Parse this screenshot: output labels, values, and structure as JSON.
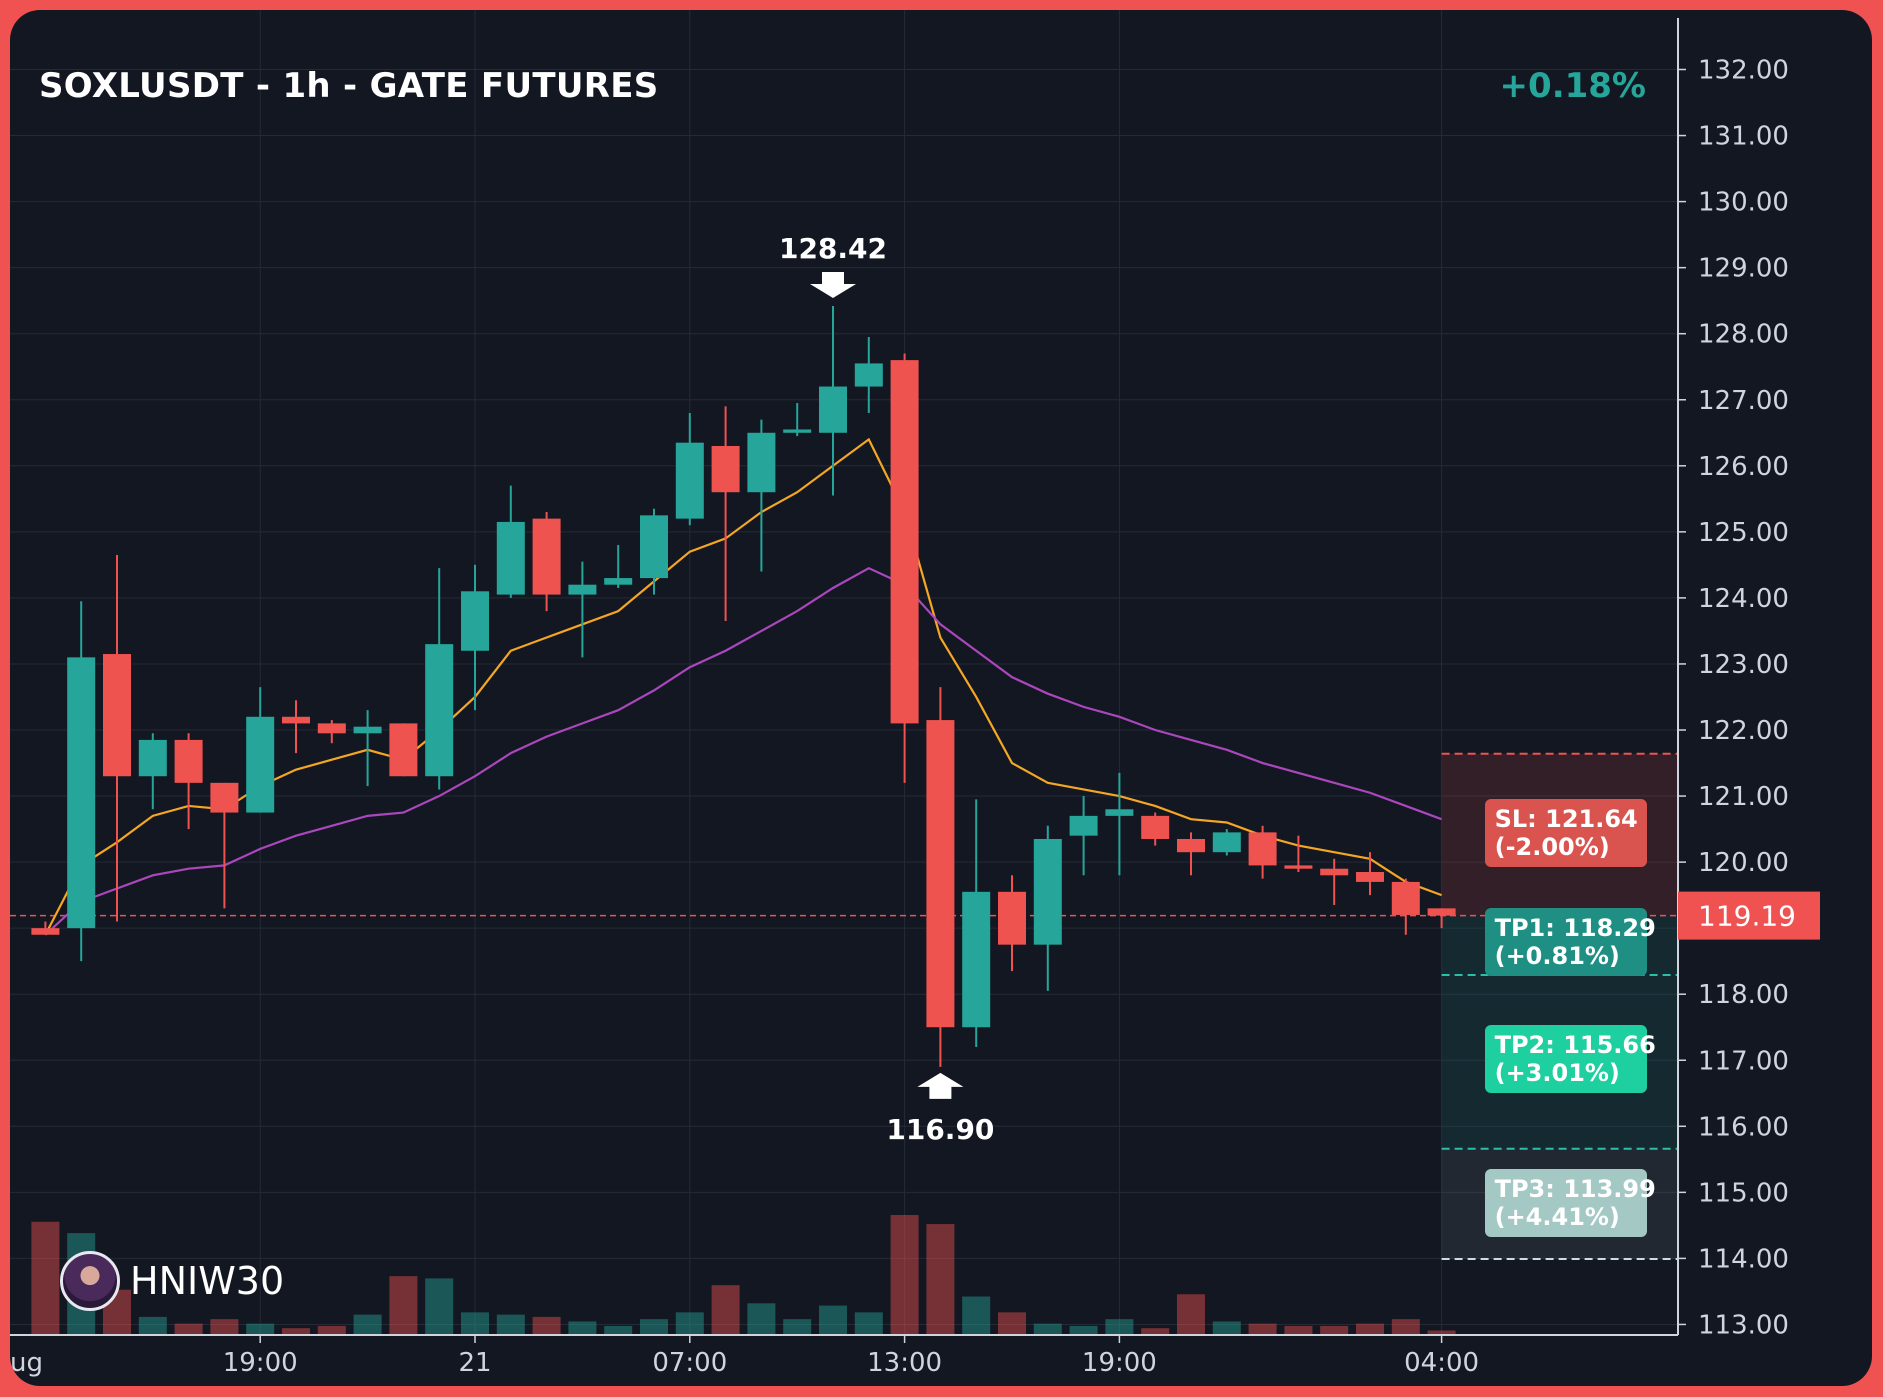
{
  "header": {
    "title": "SOXLUSDT - 1h - GATE FUTURES",
    "change": "+0.18%"
  },
  "watermark": {
    "name": "HNIW30"
  },
  "colors": {
    "up": "#26a69a",
    "down": "#ef5350",
    "ema_fast": "#f5a623",
    "ema_slow": "#ab47bc",
    "sl": "#d9534f",
    "tp1": "#1f8f84",
    "tp2": "#1ecf9f",
    "tp3": "#a4c8c4",
    "current_price_tag": "#f05252"
  },
  "chart_data": {
    "type": "candlestick",
    "title": "SOXLUSDT - 1h - GATE FUTURES",
    "y_axis": {
      "ylim": [
        112.8,
        132.4
      ],
      "ticks": [
        "113.00",
        "114.00",
        "115.00",
        "116.00",
        "117.00",
        "118.00",
        "119.00",
        "120.00",
        "121.00",
        "122.00",
        "123.00",
        "124.00",
        "125.00",
        "126.00",
        "127.00",
        "128.00",
        "129.00",
        "130.00",
        "131.00",
        "132.00"
      ]
    },
    "x_axis": {
      "ticks": [
        {
          "label": "ug",
          "index": 0
        },
        {
          "label": "19:00",
          "index": 6
        },
        {
          "label": "21",
          "index": 12
        },
        {
          "label": "07:00",
          "index": 18
        },
        {
          "label": "13:00",
          "index": 24
        },
        {
          "label": "19:00",
          "index": 30
        },
        {
          "label": "04:00",
          "index": 39
        }
      ]
    },
    "grid": true,
    "candles": [
      {
        "o": 119.0,
        "h": 119.1,
        "l": 118.9,
        "c": 118.9,
        "v": 0.5
      },
      {
        "o": 119.0,
        "h": 123.95,
        "l": 118.5,
        "c": 123.1,
        "v": 0.45
      },
      {
        "o": 123.15,
        "h": 124.65,
        "l": 119.1,
        "c": 121.3,
        "v": 0.2
      },
      {
        "o": 121.3,
        "h": 121.95,
        "l": 120.8,
        "c": 121.85,
        "v": 0.08
      },
      {
        "o": 121.85,
        "h": 121.95,
        "l": 120.5,
        "c": 121.2,
        "v": 0.05
      },
      {
        "o": 121.2,
        "h": 121.2,
        "l": 119.3,
        "c": 120.75,
        "v": 0.07
      },
      {
        "o": 120.75,
        "h": 122.65,
        "l": 120.75,
        "c": 122.2,
        "v": 0.05
      },
      {
        "o": 122.2,
        "h": 122.45,
        "l": 121.65,
        "c": 122.1,
        "v": 0.03
      },
      {
        "o": 122.1,
        "h": 122.15,
        "l": 121.8,
        "c": 121.95,
        "v": 0.04
      },
      {
        "o": 121.95,
        "h": 122.3,
        "l": 121.15,
        "c": 122.05,
        "v": 0.09
      },
      {
        "o": 122.1,
        "h": 122.1,
        "l": 121.3,
        "c": 121.3,
        "v": 0.26
      },
      {
        "o": 121.3,
        "h": 124.45,
        "l": 121.1,
        "c": 123.3,
        "v": 0.25
      },
      {
        "o": 123.2,
        "h": 124.5,
        "l": 122.3,
        "c": 124.1,
        "v": 0.1
      },
      {
        "o": 124.05,
        "h": 125.7,
        "l": 124.0,
        "c": 125.15,
        "v": 0.09
      },
      {
        "o": 125.2,
        "h": 125.3,
        "l": 123.8,
        "c": 124.05,
        "v": 0.08
      },
      {
        "o": 124.05,
        "h": 124.55,
        "l": 123.1,
        "c": 124.2,
        "v": 0.06
      },
      {
        "o": 124.2,
        "h": 124.8,
        "l": 124.15,
        "c": 124.3,
        "v": 0.04
      },
      {
        "o": 124.3,
        "h": 125.35,
        "l": 124.05,
        "c": 125.25,
        "v": 0.07
      },
      {
        "o": 125.2,
        "h": 126.8,
        "l": 125.1,
        "c": 126.35,
        "v": 0.1
      },
      {
        "o": 126.3,
        "h": 126.9,
        "l": 123.65,
        "c": 125.6,
        "v": 0.22
      },
      {
        "o": 125.6,
        "h": 126.7,
        "l": 124.4,
        "c": 126.5,
        "v": 0.14
      },
      {
        "o": 126.5,
        "h": 126.95,
        "l": 126.45,
        "c": 126.55,
        "v": 0.07
      },
      {
        "o": 126.5,
        "h": 128.42,
        "l": 125.55,
        "c": 127.2,
        "v": 0.13
      },
      {
        "o": 127.2,
        "h": 127.95,
        "l": 126.8,
        "c": 127.55,
        "v": 0.1
      },
      {
        "o": 127.6,
        "h": 127.7,
        "l": 121.2,
        "c": 122.1,
        "v": 0.53
      },
      {
        "o": 122.15,
        "h": 122.65,
        "l": 116.9,
        "c": 117.5,
        "v": 0.49
      },
      {
        "o": 117.5,
        "h": 120.95,
        "l": 117.2,
        "c": 119.55,
        "v": 0.17
      },
      {
        "o": 119.55,
        "h": 119.8,
        "l": 118.35,
        "c": 118.75,
        "v": 0.1
      },
      {
        "o": 118.75,
        "h": 120.55,
        "l": 118.05,
        "c": 120.35,
        "v": 0.05
      },
      {
        "o": 120.4,
        "h": 121.0,
        "l": 119.8,
        "c": 120.7,
        "v": 0.04
      },
      {
        "o": 120.7,
        "h": 121.35,
        "l": 119.8,
        "c": 120.8,
        "v": 0.07
      },
      {
        "o": 120.7,
        "h": 120.75,
        "l": 120.25,
        "c": 120.35,
        "v": 0.03
      },
      {
        "o": 120.35,
        "h": 120.45,
        "l": 119.8,
        "c": 120.15,
        "v": 0.18
      },
      {
        "o": 120.15,
        "h": 120.5,
        "l": 120.1,
        "c": 120.45,
        "v": 0.06
      },
      {
        "o": 120.45,
        "h": 120.55,
        "l": 119.75,
        "c": 119.95,
        "v": 0.05
      },
      {
        "o": 119.95,
        "h": 120.4,
        "l": 119.85,
        "c": 119.9,
        "v": 0.04
      },
      {
        "o": 119.9,
        "h": 120.05,
        "l": 119.35,
        "c": 119.8,
        "v": 0.04
      },
      {
        "o": 119.85,
        "h": 120.15,
        "l": 119.5,
        "c": 119.7,
        "v": 0.05
      },
      {
        "o": 119.7,
        "h": 119.75,
        "l": 118.9,
        "c": 119.2,
        "v": 0.07
      },
      {
        "o": 119.3,
        "h": 119.3,
        "l": 119.0,
        "c": 119.19,
        "v": 0.02
      }
    ],
    "series": [
      {
        "values": [
          118.9,
          119.95,
          120.3,
          120.7,
          120.85,
          120.8,
          121.15,
          121.4,
          121.55,
          121.7,
          121.55,
          122.0,
          122.5,
          123.2,
          123.4,
          123.6,
          123.8,
          124.25,
          124.7,
          124.9,
          125.3,
          125.6,
          126.0,
          126.4,
          125.3,
          123.4,
          122.5,
          121.5,
          121.2,
          121.1,
          121.0,
          120.85,
          120.65,
          120.6,
          120.4,
          120.25,
          120.15,
          120.05,
          119.7,
          119.5
        ]
      },
      {
        "values": [
          118.9,
          119.4,
          119.6,
          119.8,
          119.9,
          119.95,
          120.2,
          120.4,
          120.55,
          120.7,
          120.75,
          121.0,
          121.3,
          121.65,
          121.9,
          122.1,
          122.3,
          122.6,
          122.95,
          123.2,
          123.5,
          123.8,
          124.15,
          124.45,
          124.2,
          123.6,
          123.2,
          122.8,
          122.55,
          122.35,
          122.2,
          122.0,
          121.85,
          121.7,
          121.5,
          121.35,
          121.2,
          121.05,
          120.85,
          120.65
        ]
      }
    ],
    "annotations": [
      {
        "text": "128.42",
        "index": 22,
        "price": 128.42,
        "type": "high-marker"
      },
      {
        "text": "116.90",
        "index": 25,
        "price": 116.9,
        "type": "low-marker"
      }
    ],
    "current_price": {
      "value": 119.19,
      "label": "119.19"
    },
    "levels": [
      {
        "name": "SL",
        "price": 121.64,
        "line1": "SL: 121.64",
        "line2": "(-2.00%)",
        "color_key": "sl"
      },
      {
        "name": "TP1",
        "price": 118.29,
        "line1": "TP1: 118.29",
        "line2": "(+0.81%)",
        "color_key": "tp1"
      },
      {
        "name": "TP2",
        "price": 115.66,
        "line1": "TP2: 115.66",
        "line2": "(+3.01%)",
        "color_key": "tp2"
      },
      {
        "name": "TP3",
        "price": 113.99,
        "line1": "TP3: 113.99",
        "line2": "(+4.41%)",
        "color_key": "tp3"
      }
    ]
  }
}
